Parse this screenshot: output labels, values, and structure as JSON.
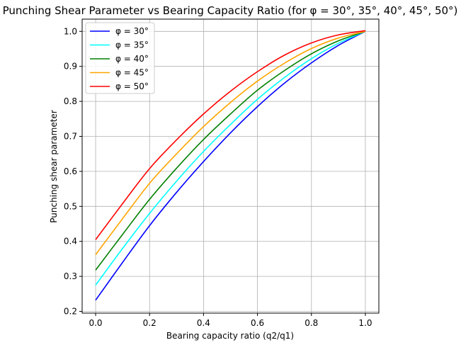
{
  "chart_data": {
    "type": "line",
    "title": "Punching Shear Parameter vs Bearing Capacity Ratio (for φ = 30°, 35°, 40°, 45°, 50°)",
    "xlabel": "Bearing capacity ratio (q2/q1)",
    "ylabel": "Punching shear parameter",
    "xlim": [
      -0.05,
      1.05
    ],
    "ylim": [
      0.195,
      1.035
    ],
    "grid": true,
    "legend_position": "upper-left",
    "xticks": [
      0.0,
      0.2,
      0.4,
      0.6,
      0.8,
      1.0
    ],
    "xtick_labels": [
      "0.0",
      "0.2",
      "0.4",
      "0.6",
      "0.8",
      "1.0"
    ],
    "yticks": [
      0.2,
      0.3,
      0.4,
      0.5,
      0.6,
      0.7,
      0.8,
      0.9,
      1.0
    ],
    "ytick_labels": [
      "0.2",
      "0.3",
      "0.4",
      "0.5",
      "0.6",
      "0.7",
      "0.8",
      "0.9",
      "1.0"
    ],
    "x": [
      0.0,
      0.1,
      0.2,
      0.3,
      0.4,
      0.5,
      0.6,
      0.7,
      0.8,
      0.9,
      1.0
    ],
    "series": [
      {
        "name": "φ = 30°",
        "color": "#0000ff",
        "values": [
          0.232,
          0.34,
          0.445,
          0.54,
          0.628,
          0.71,
          0.785,
          0.852,
          0.91,
          0.96,
          1.0
        ]
      },
      {
        "name": "φ = 35°",
        "color": "#00ffff",
        "values": [
          0.275,
          0.38,
          0.48,
          0.572,
          0.657,
          0.734,
          0.806,
          0.868,
          0.922,
          0.966,
          1.0
        ]
      },
      {
        "name": "φ = 40°",
        "color": "#008000",
        "values": [
          0.318,
          0.42,
          0.52,
          0.609,
          0.691,
          0.764,
          0.832,
          0.888,
          0.936,
          0.973,
          1.0
        ]
      },
      {
        "name": "φ = 45°",
        "color": "#ffa500",
        "values": [
          0.362,
          0.465,
          0.566,
          0.65,
          0.728,
          0.797,
          0.858,
          0.909,
          0.951,
          0.981,
          1.0
        ]
      },
      {
        "name": "φ = 50°",
        "color": "#ff0000",
        "values": [
          0.405,
          0.508,
          0.608,
          0.69,
          0.764,
          0.829,
          0.885,
          0.932,
          0.967,
          0.99,
          1.002
        ]
      }
    ]
  }
}
